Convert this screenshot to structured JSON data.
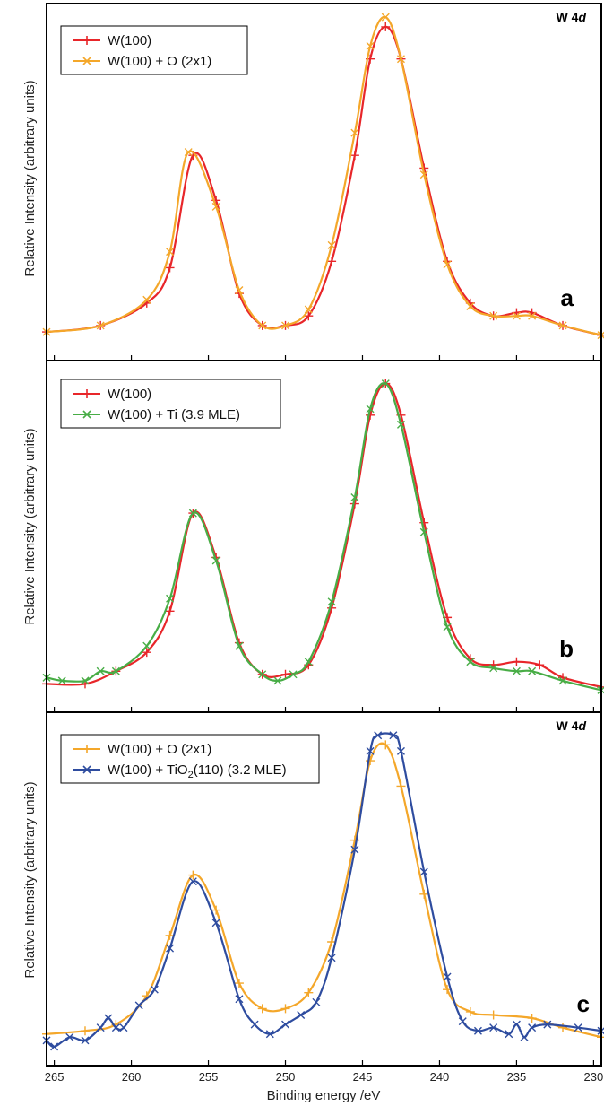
{
  "x_axis": {
    "label": "Binding energy /eV",
    "ticks": [
      "265",
      "260",
      "255",
      "250",
      "245",
      "240",
      "235",
      "230"
    ]
  },
  "y_axis_label": "Relative Intensity (arbitrary units)",
  "colors": {
    "clean": "#e8262a",
    "oxygen": "#f4a72a",
    "titanium": "#48ad46",
    "tio2": "#2e4c9f"
  },
  "chart_data": [
    {
      "type": "line",
      "panel": "a",
      "corner_label": "W 4d",
      "xlabel": "Binding energy /eV",
      "ylabel": "Relative Intensity (arbitrary units)",
      "xlim": [
        265.5,
        229.5
      ],
      "x_reversed": true,
      "ylim": [
        0,
        1.05
      ],
      "legend_position": "top-left",
      "series": [
        {
          "name": "W(100)",
          "color": "#e8262a",
          "marker": "plus",
          "points": [
            [
              265.5,
              0.05
            ],
            [
              262,
              0.07
            ],
            [
              259,
              0.14
            ],
            [
              257.5,
              0.25
            ],
            [
              256,
              0.6
            ],
            [
              254.5,
              0.46
            ],
            [
              253,
              0.17
            ],
            [
              251.5,
              0.07
            ],
            [
              250,
              0.07
            ],
            [
              248.5,
              0.1
            ],
            [
              247,
              0.27
            ],
            [
              245.5,
              0.6
            ],
            [
              244.5,
              0.9
            ],
            [
              243.5,
              1.0
            ],
            [
              242.5,
              0.9
            ],
            [
              241,
              0.56
            ],
            [
              239.5,
              0.27
            ],
            [
              238,
              0.14
            ],
            [
              236.5,
              0.1
            ],
            [
              235,
              0.11
            ],
            [
              234,
              0.11
            ],
            [
              232,
              0.07
            ],
            [
              229.5,
              0.04
            ]
          ]
        },
        {
          "name": "W(100) + O (2x1)",
          "color": "#f4a72a",
          "marker": "x",
          "points": [
            [
              265.5,
              0.05
            ],
            [
              262,
              0.07
            ],
            [
              259,
              0.15
            ],
            [
              257.5,
              0.3
            ],
            [
              256.3,
              0.61
            ],
            [
              254.5,
              0.44
            ],
            [
              253,
              0.18
            ],
            [
              251.5,
              0.07
            ],
            [
              250,
              0.07
            ],
            [
              248.5,
              0.12
            ],
            [
              247,
              0.32
            ],
            [
              245.5,
              0.67
            ],
            [
              244.5,
              0.94
            ],
            [
              243.5,
              1.03
            ],
            [
              242.5,
              0.9
            ],
            [
              241,
              0.54
            ],
            [
              239.5,
              0.26
            ],
            [
              238,
              0.13
            ],
            [
              236.5,
              0.1
            ],
            [
              235,
              0.1
            ],
            [
              234,
              0.1
            ],
            [
              232,
              0.07
            ],
            [
              229.5,
              0.04
            ]
          ]
        }
      ]
    },
    {
      "type": "line",
      "panel": "b",
      "corner_label": "",
      "xlabel": "Binding energy /eV",
      "ylabel": "Relative Intensity (arbitrary units)",
      "xlim": [
        265.5,
        229.5
      ],
      "x_reversed": true,
      "ylim": [
        0,
        1.05
      ],
      "legend_position": "top-left",
      "series": [
        {
          "name": "W(100)",
          "color": "#e8262a",
          "marker": "plus",
          "points": [
            [
              265.5,
              0.05
            ],
            [
              263,
              0.05
            ],
            [
              261,
              0.09
            ],
            [
              259,
              0.15
            ],
            [
              257.5,
              0.28
            ],
            [
              256,
              0.59
            ],
            [
              254.5,
              0.45
            ],
            [
              253,
              0.18
            ],
            [
              251.5,
              0.08
            ],
            [
              250,
              0.08
            ],
            [
              248.5,
              0.11
            ],
            [
              247,
              0.29
            ],
            [
              245.5,
              0.62
            ],
            [
              244.5,
              0.9
            ],
            [
              243.5,
              1.0
            ],
            [
              242.5,
              0.9
            ],
            [
              241,
              0.56
            ],
            [
              239.5,
              0.26
            ],
            [
              238,
              0.13
            ],
            [
              236.5,
              0.11
            ],
            [
              235,
              0.12
            ],
            [
              233.5,
              0.11
            ],
            [
              232,
              0.07
            ],
            [
              229.5,
              0.04
            ]
          ]
        },
        {
          "name": "W(100) + Ti (3.9 MLE)",
          "color": "#48ad46",
          "marker": "x",
          "points": [
            [
              265.5,
              0.07
            ],
            [
              264.5,
              0.06
            ],
            [
              263,
              0.06
            ],
            [
              262,
              0.09
            ],
            [
              261,
              0.09
            ],
            [
              259,
              0.17
            ],
            [
              257.5,
              0.32
            ],
            [
              256,
              0.59
            ],
            [
              254.5,
              0.44
            ],
            [
              253,
              0.17
            ],
            [
              251.5,
              0.08
            ],
            [
              250.5,
              0.06
            ],
            [
              249.5,
              0.08
            ],
            [
              248.5,
              0.12
            ],
            [
              247,
              0.31
            ],
            [
              245.5,
              0.64
            ],
            [
              244.5,
              0.92
            ],
            [
              243.5,
              1.0
            ],
            [
              242.5,
              0.87
            ],
            [
              241,
              0.53
            ],
            [
              239.5,
              0.23
            ],
            [
              238,
              0.12
            ],
            [
              236.5,
              0.1
            ],
            [
              235,
              0.09
            ],
            [
              234,
              0.09
            ],
            [
              232,
              0.06
            ],
            [
              229.5,
              0.03
            ]
          ]
        }
      ]
    },
    {
      "type": "line",
      "panel": "c",
      "corner_label": "W 4d",
      "xlabel": "Binding energy /eV",
      "ylabel": "Relative Intensity (arbitrary units)",
      "xlim": [
        265.5,
        229.5
      ],
      "x_reversed": true,
      "ylim": [
        0,
        1.05
      ],
      "legend_position": "top-left",
      "series": [
        {
          "name": "W(100) + O (2x1)",
          "color": "#f4a72a",
          "marker": "plus",
          "points": [
            [
              265.5,
              0.06
            ],
            [
              263,
              0.07
            ],
            [
              261,
              0.09
            ],
            [
              259,
              0.18
            ],
            [
              257.5,
              0.37
            ],
            [
              256,
              0.56
            ],
            [
              254.5,
              0.45
            ],
            [
              253,
              0.22
            ],
            [
              251.5,
              0.14
            ],
            [
              250,
              0.14
            ],
            [
              248.5,
              0.19
            ],
            [
              247,
              0.35
            ],
            [
              245.5,
              0.67
            ],
            [
              244.5,
              0.92
            ],
            [
              243.5,
              0.97
            ],
            [
              242.5,
              0.84
            ],
            [
              241,
              0.5
            ],
            [
              239.5,
              0.2
            ],
            [
              238,
              0.13
            ],
            [
              236.5,
              0.12
            ],
            [
              234,
              0.11
            ],
            [
              232,
              0.08
            ],
            [
              229.5,
              0.05
            ]
          ]
        },
        {
          "name": "W(100) + TiO2(110) (3.2 MLE)",
          "color": "#2e4c9f",
          "marker": "x",
          "points": [
            [
              265.5,
              0.04
            ],
            [
              265,
              0.02
            ],
            [
              264,
              0.05
            ],
            [
              263,
              0.04
            ],
            [
              262,
              0.08
            ],
            [
              261.5,
              0.11
            ],
            [
              261,
              0.08
            ],
            [
              260.5,
              0.08
            ],
            [
              259.5,
              0.15
            ],
            [
              258.5,
              0.2
            ],
            [
              257.5,
              0.33
            ],
            [
              256,
              0.54
            ],
            [
              254.5,
              0.41
            ],
            [
              253,
              0.17
            ],
            [
              252,
              0.09
            ],
            [
              251,
              0.06
            ],
            [
              250,
              0.09
            ],
            [
              249,
              0.12
            ],
            [
              248,
              0.16
            ],
            [
              247,
              0.3
            ],
            [
              245.5,
              0.64
            ],
            [
              244.5,
              0.95
            ],
            [
              244,
              1.0
            ],
            [
              243,
              1.0
            ],
            [
              242.5,
              0.95
            ],
            [
              241,
              0.57
            ],
            [
              239.5,
              0.24
            ],
            [
              238.5,
              0.1
            ],
            [
              237.5,
              0.07
            ],
            [
              236.5,
              0.08
            ],
            [
              235.5,
              0.06
            ],
            [
              235,
              0.09
            ],
            [
              234.5,
              0.05
            ],
            [
              234,
              0.08
            ],
            [
              233,
              0.09
            ],
            [
              231,
              0.08
            ],
            [
              229.5,
              0.07
            ]
          ]
        }
      ]
    }
  ]
}
